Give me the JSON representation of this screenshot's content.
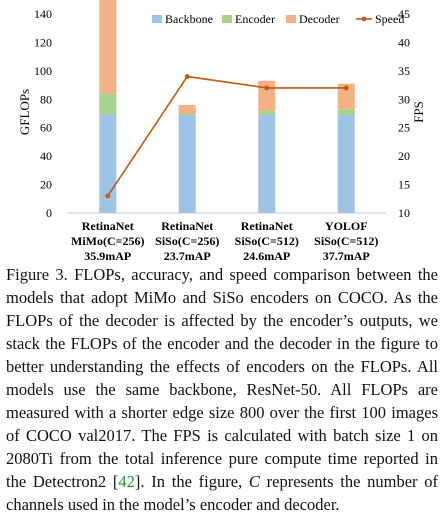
{
  "chart_data": {
    "type": "bar",
    "stacked": true,
    "categories": [
      [
        "RetinaNet",
        "MiMo(C=256)",
        "35.9mAP"
      ],
      [
        "RetinaNet",
        "SiSo(C=256)",
        "23.7mAP"
      ],
      [
        "RetinaNet",
        "SiSo(C=512)",
        "24.6mAP"
      ],
      [
        "YOLOF",
        "SiSo(C=512)",
        "37.7mAP"
      ]
    ],
    "series": [
      {
        "name": "Backbone",
        "color": "#9DC3E6",
        "values": [
          69,
          69,
          69,
          69
        ]
      },
      {
        "name": "Encoder",
        "color": "#A9D18E",
        "values": [
          15,
          1,
          3,
          4
        ]
      },
      {
        "name": "Decoder",
        "color": "#F4B183",
        "values": [
          134,
          6,
          21,
          18
        ]
      }
    ],
    "line": {
      "name": "Speed",
      "color": "#C55A11",
      "values": [
        13,
        34,
        32,
        32
      ]
    },
    "ylabel": "GFLOPs",
    "ylim": [
      0,
      140
    ],
    "yticks": [
      0,
      20,
      40,
      60,
      80,
      100,
      120,
      140
    ],
    "y2label": "FPS",
    "y2lim": [
      10,
      45
    ],
    "y2ticks": [
      10,
      15,
      20,
      25,
      30,
      35,
      40,
      45
    ],
    "legend_position": "top-right",
    "grid": false
  },
  "caption": {
    "label": "Figure 3.",
    "text_1": "FLOPs, accuracy, and speed comparison between the models that adopt MiMo and SiSo encoders on COCO. As the FLOPs of the decoder is affected by the encoder’s outputs, we stack the FLOPs of the encoder and the decoder in the figure to better understanding the effects of encoders on the FLOPs. All models use the same backbone, ResNet-50. All FLOPs are measured with a shorter edge size 800 over the first 100 images of COCO val2017. The FPS is calculated with batch size 1 on 2080Ti from the total inference pure compute time reported in the Detectron2 [",
    "ref": "42",
    "text_2": "]. In the figure, ",
    "italic": "C",
    "text_3": " represents the number of channels used in the model’s encoder and decoder."
  }
}
